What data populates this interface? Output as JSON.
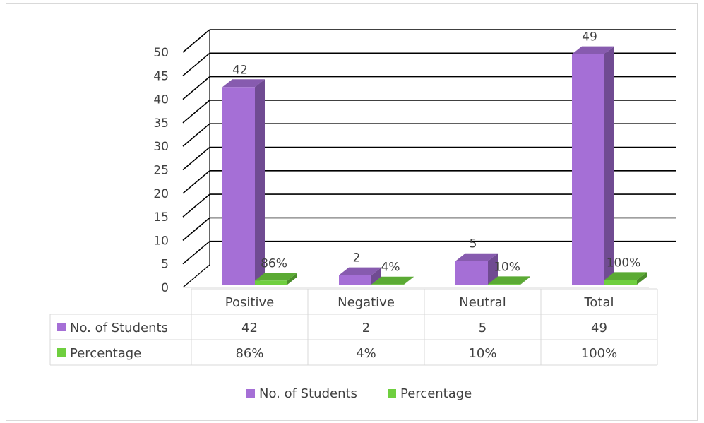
{
  "chart_data": {
    "type": "bar",
    "categories": [
      "Positive",
      "Negative",
      "Neutral",
      "Total"
    ],
    "series": [
      {
        "name": "No. of Students",
        "values": [
          42,
          2,
          5,
          49
        ],
        "labels": [
          "42",
          "2",
          "5",
          "49"
        ],
        "color": "#a56fd6"
      },
      {
        "name": "Percentage",
        "values": [
          0.86,
          0.04,
          0.1,
          1.0
        ],
        "labels": [
          "86%",
          "4%",
          "10%",
          "100%"
        ],
        "color": "#6fcf3f"
      }
    ],
    "ylim": [
      0,
      50
    ],
    "yticks": [
      0,
      5,
      10,
      15,
      20,
      25,
      30,
      35,
      40,
      45,
      50
    ],
    "grid": true,
    "legend": "bottom",
    "data_table": true
  }
}
